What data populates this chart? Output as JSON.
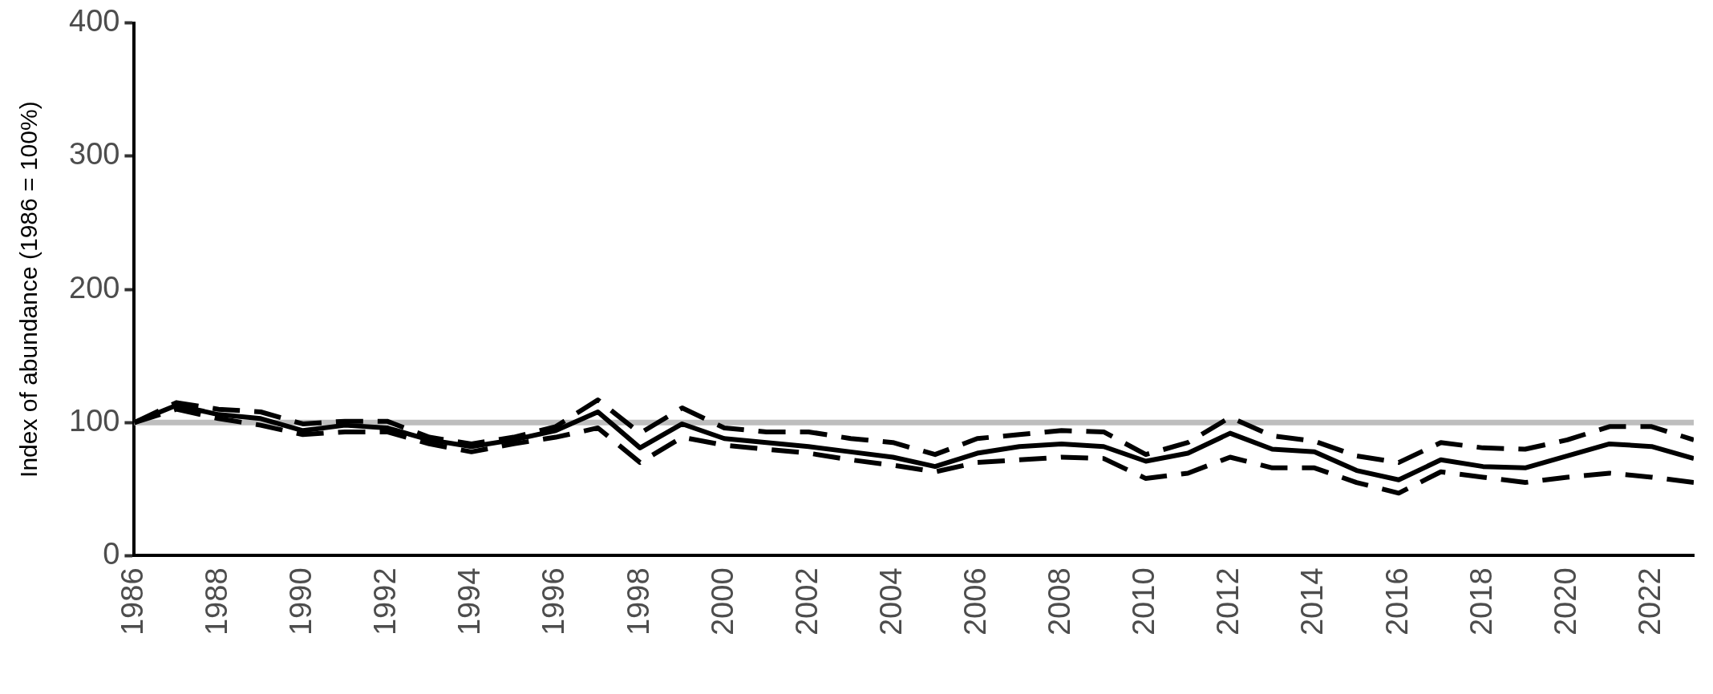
{
  "chart_data": {
    "type": "line",
    "ylabel": "Index of abundance (1986 = 100%)",
    "x": [
      1986,
      1987,
      1988,
      1989,
      1990,
      1991,
      1992,
      1993,
      1994,
      1995,
      1996,
      1997,
      1998,
      1999,
      2000,
      2001,
      2002,
      2003,
      2004,
      2005,
      2006,
      2007,
      2008,
      2009,
      2010,
      2011,
      2012,
      2013,
      2014,
      2015,
      2016,
      2017,
      2018,
      2019,
      2020,
      2021,
      2022,
      2023
    ],
    "series": [
      {
        "color": "#000000",
        "line_style": "dashed",
        "values": [
          100,
          115,
          110,
          108,
          99,
          101,
          101,
          89,
          84,
          89,
          97,
          117,
          92,
          111,
          96,
          93,
          93,
          88,
          85,
          76,
          88,
          91,
          94,
          93,
          76,
          85,
          104,
          90,
          86,
          75,
          70,
          85,
          81,
          80,
          87,
          97,
          97,
          87
        ]
      },
      {
        "color": "#000000",
        "line_style": "dashed",
        "values": [
          100,
          110,
          103,
          98,
          91,
          93,
          93,
          84,
          78,
          84,
          89,
          96,
          70,
          89,
          83,
          80,
          77,
          72,
          68,
          63,
          70,
          72,
          74,
          73,
          58,
          62,
          74,
          66,
          66,
          55,
          47,
          63,
          59,
          55,
          59,
          62,
          59,
          55
        ]
      },
      {
        "color": "#000000",
        "line_style": "solid",
        "values": [
          100,
          113,
          106,
          103,
          94,
          98,
          96,
          87,
          82,
          87,
          94,
          108,
          81,
          99,
          88,
          85,
          82,
          78,
          74,
          67,
          77,
          82,
          84,
          82,
          71,
          77,
          92,
          80,
          78,
          64,
          57,
          72,
          67,
          66,
          75,
          84,
          82,
          73
        ]
      }
    ],
    "xlim": [
      1986,
      2023
    ],
    "xticks": [
      1986,
      1988,
      1990,
      1992,
      1994,
      1996,
      1998,
      2000,
      2002,
      2004,
      2006,
      2008,
      2010,
      2012,
      2014,
      2016,
      2018,
      2020,
      2022
    ],
    "ylim": [
      0,
      400
    ],
    "yticks": [
      0,
      100,
      200,
      300,
      400
    ],
    "ref_lines": [
      {
        "axis": "y",
        "value": 100,
        "color": "#bebebe"
      }
    ],
    "grid": false,
    "legend": false,
    "marker": "none"
  }
}
